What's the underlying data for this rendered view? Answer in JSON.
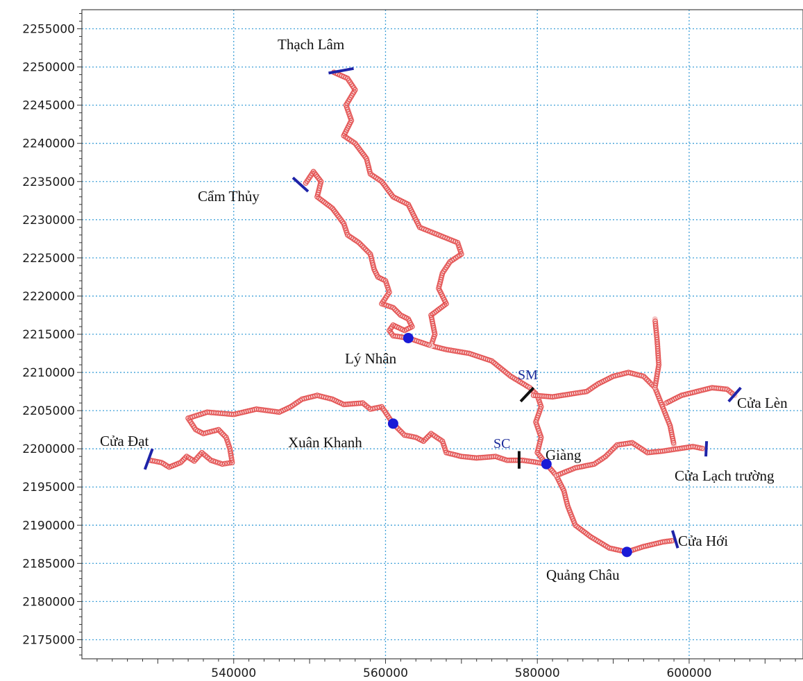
{
  "chart_data": {
    "type": "map",
    "x_ticks": [
      540000,
      560000,
      580000,
      600000
    ],
    "y_ticks": [
      2175000,
      2180000,
      2185000,
      2190000,
      2195000,
      2200000,
      2205000,
      2210000,
      2215000,
      2220000,
      2225000,
      2230000,
      2235000,
      2240000,
      2245000,
      2250000,
      2255000
    ],
    "xlim": [
      520000,
      615000
    ],
    "ylim": [
      2172500,
      2257500
    ],
    "grid": true,
    "labels": {
      "thach_lam": "Thạch Lâm",
      "cam_thuy": "Cẩm Thủy",
      "ly_nhan": "Lý Nhân",
      "sm": "SM",
      "cua_len": "Cửa Lèn",
      "cua_dat": "Cửa Đạt",
      "xuan_khanh": "Xuân Khanh",
      "sc": "SC",
      "giang": "Giàng",
      "cua_lach_truong": "Cửa Lạch trường",
      "cua_hoi": "Cửa Hới",
      "quang_chau": "Quảng Châu"
    },
    "stations": [
      {
        "name": "Lý Nhân",
        "x": 563000,
        "y": 2214500
      },
      {
        "name": "Xuân Khanh",
        "x": 561000,
        "y": 2203300
      },
      {
        "name": "Giàng",
        "x": 581200,
        "y": 2198000
      },
      {
        "name": "Quảng Châu",
        "x": 591800,
        "y": 2186500
      }
    ],
    "rivers": [
      {
        "name": "Thạch Lâm branch",
        "points": [
          [
            553200,
            2249300
          ],
          [
            555000,
            2248500
          ],
          [
            556000,
            2247000
          ],
          [
            554800,
            2245000
          ],
          [
            555500,
            2243000
          ],
          [
            554500,
            2241000
          ],
          [
            556000,
            2240000
          ],
          [
            557500,
            2238000
          ],
          [
            558000,
            2236000
          ],
          [
            559500,
            2235000
          ],
          [
            561000,
            2233000
          ],
          [
            563000,
            2232000
          ],
          [
            564500,
            2229000
          ],
          [
            567000,
            2228000
          ],
          [
            569500,
            2227000
          ],
          [
            570000,
            2225500
          ],
          [
            568500,
            2224500
          ],
          [
            567500,
            2223000
          ],
          [
            567000,
            2221000
          ],
          [
            568000,
            2219000
          ],
          [
            566000,
            2217500
          ],
          [
            566500,
            2215000
          ],
          [
            566000,
            2213500
          ],
          [
            568000,
            2213000
          ],
          [
            571000,
            2212500
          ],
          [
            574000,
            2211500
          ],
          [
            576500,
            2209500
          ],
          [
            579000,
            2208000
          ]
        ]
      },
      {
        "name": "Cẩm Thủy branch",
        "points": [
          [
            549500,
            2234800
          ],
          [
            550500,
            2236300
          ],
          [
            551500,
            2235000
          ],
          [
            551000,
            2233000
          ],
          [
            553000,
            2231500
          ],
          [
            554500,
            2229500
          ],
          [
            555000,
            2228000
          ],
          [
            556500,
            2227000
          ],
          [
            558000,
            2225500
          ],
          [
            558500,
            2223500
          ],
          [
            559000,
            2222500
          ],
          [
            560000,
            2222000
          ],
          [
            560500,
            2220500
          ],
          [
            559500,
            2219000
          ],
          [
            561000,
            2218500
          ],
          [
            562000,
            2217500
          ],
          [
            563000,
            2217000
          ],
          [
            563500,
            2216000
          ],
          [
            562500,
            2215500
          ],
          [
            561000,
            2216200
          ],
          [
            560500,
            2215500
          ],
          [
            561000,
            2214800
          ],
          [
            563000,
            2214500
          ],
          [
            566000,
            2213500
          ]
        ]
      },
      {
        "name": "Main stem to Quảng Châu",
        "points": [
          [
            579000,
            2208000
          ],
          [
            580000,
            2207000
          ],
          [
            580500,
            2205500
          ],
          [
            579800,
            2203500
          ],
          [
            580500,
            2201500
          ],
          [
            580000,
            2199500
          ],
          [
            581200,
            2198000
          ],
          [
            582500,
            2196500
          ],
          [
            583500,
            2194500
          ],
          [
            584000,
            2192500
          ],
          [
            585000,
            2190000
          ],
          [
            587000,
            2188500
          ],
          [
            589500,
            2187000
          ],
          [
            591800,
            2186500
          ],
          [
            594000,
            2187200
          ],
          [
            596500,
            2187800
          ],
          [
            598000,
            2188000
          ]
        ]
      },
      {
        "name": "Cửa Đạt branch",
        "points": [
          [
            529000,
            2198500
          ],
          [
            530500,
            2198200
          ],
          [
            531500,
            2197600
          ],
          [
            533000,
            2198200
          ],
          [
            533800,
            2199000
          ],
          [
            534800,
            2198400
          ],
          [
            535800,
            2199500
          ],
          [
            537000,
            2198500
          ],
          [
            538500,
            2198000
          ],
          [
            539800,
            2198200
          ],
          [
            539500,
            2200000
          ],
          [
            539000,
            2201500
          ],
          [
            538000,
            2202500
          ],
          [
            536000,
            2202000
          ],
          [
            535000,
            2202500
          ],
          [
            534000,
            2204000
          ],
          [
            536500,
            2204800
          ],
          [
            540000,
            2204500
          ],
          [
            543000,
            2205200
          ],
          [
            546000,
            2204800
          ],
          [
            547500,
            2205500
          ],
          [
            549000,
            2206500
          ],
          [
            551000,
            2207000
          ],
          [
            553000,
            2206500
          ],
          [
            554500,
            2205800
          ],
          [
            557000,
            2206000
          ],
          [
            558000,
            2205200
          ],
          [
            559500,
            2205500
          ],
          [
            561000,
            2203300
          ],
          [
            562500,
            2201800
          ],
          [
            564000,
            2201500
          ],
          [
            565000,
            2201000
          ],
          [
            566000,
            2202000
          ],
          [
            567500,
            2201000
          ],
          [
            568000,
            2199500
          ],
          [
            570000,
            2199000
          ],
          [
            572000,
            2198800
          ],
          [
            574500,
            2199000
          ],
          [
            576000,
            2198500
          ],
          [
            578000,
            2198500
          ],
          [
            579500,
            2198300
          ],
          [
            581200,
            2198000
          ]
        ]
      },
      {
        "name": "SM east branch",
        "points": [
          [
            579500,
            2207000
          ],
          [
            582000,
            2206800
          ],
          [
            584500,
            2207200
          ],
          [
            586500,
            2207500
          ],
          [
            588000,
            2208500
          ],
          [
            590000,
            2209500
          ],
          [
            592000,
            2210000
          ],
          [
            594000,
            2209500
          ],
          [
            595500,
            2208000
          ],
          [
            596500,
            2205500
          ],
          [
            597500,
            2203000
          ],
          [
            598000,
            2200500
          ]
        ]
      },
      {
        "name": "Cửa Lèn branch",
        "points": [
          [
            597000,
            2206000
          ],
          [
            599000,
            2207000
          ],
          [
            601000,
            2207500
          ],
          [
            603000,
            2208000
          ],
          [
            605000,
            2207800
          ],
          [
            606000,
            2207000
          ]
        ]
      },
      {
        "name": "Northern spur",
        "points": [
          [
            595500,
            2208000
          ],
          [
            596000,
            2211000
          ],
          [
            595800,
            2214000
          ],
          [
            595500,
            2217000
          ]
        ]
      },
      {
        "name": "Cửa Lạch Trường branch",
        "points": [
          [
            582500,
            2196500
          ],
          [
            585000,
            2197500
          ],
          [
            587500,
            2198000
          ],
          [
            589000,
            2199000
          ],
          [
            590500,
            2200500
          ],
          [
            592500,
            2200800
          ],
          [
            594500,
            2199500
          ],
          [
            596500,
            2199700
          ],
          [
            598500,
            2200000
          ],
          [
            600500,
            2200300
          ],
          [
            602000,
            2200000
          ]
        ]
      }
    ],
    "cross_sections": [
      {
        "color": "#1e23a8",
        "from": [
          552500,
          2249200
        ],
        "to": [
          555800,
          2249800
        ]
      },
      {
        "color": "#1e23a8",
        "from": [
          547800,
          2235500
        ],
        "to": [
          549800,
          2233700
        ]
      },
      {
        "color": "#1e23a8",
        "from": [
          529300,
          2200000
        ],
        "to": [
          528300,
          2197300
        ]
      },
      {
        "color": "#1e23a8",
        "from": [
          605200,
          2206200
        ],
        "to": [
          606800,
          2208000
        ]
      },
      {
        "color": "#1e23a8",
        "from": [
          602200,
          2199000
        ],
        "to": [
          602300,
          2201000
        ]
      },
      {
        "color": "#1e23a8",
        "from": [
          597800,
          2189300
        ],
        "to": [
          598500,
          2187000
        ]
      },
      {
        "color": "#111111",
        "from": [
          577800,
          2206200
        ],
        "to": [
          579500,
          2208000
        ]
      },
      {
        "color": "#111111",
        "from": [
          577600,
          2197400
        ],
        "to": [
          577600,
          2199700
        ]
      }
    ],
    "river_color": "#e24a4a",
    "station_color": "#1a1ad6",
    "grid_color": "#3fa0d8"
  }
}
